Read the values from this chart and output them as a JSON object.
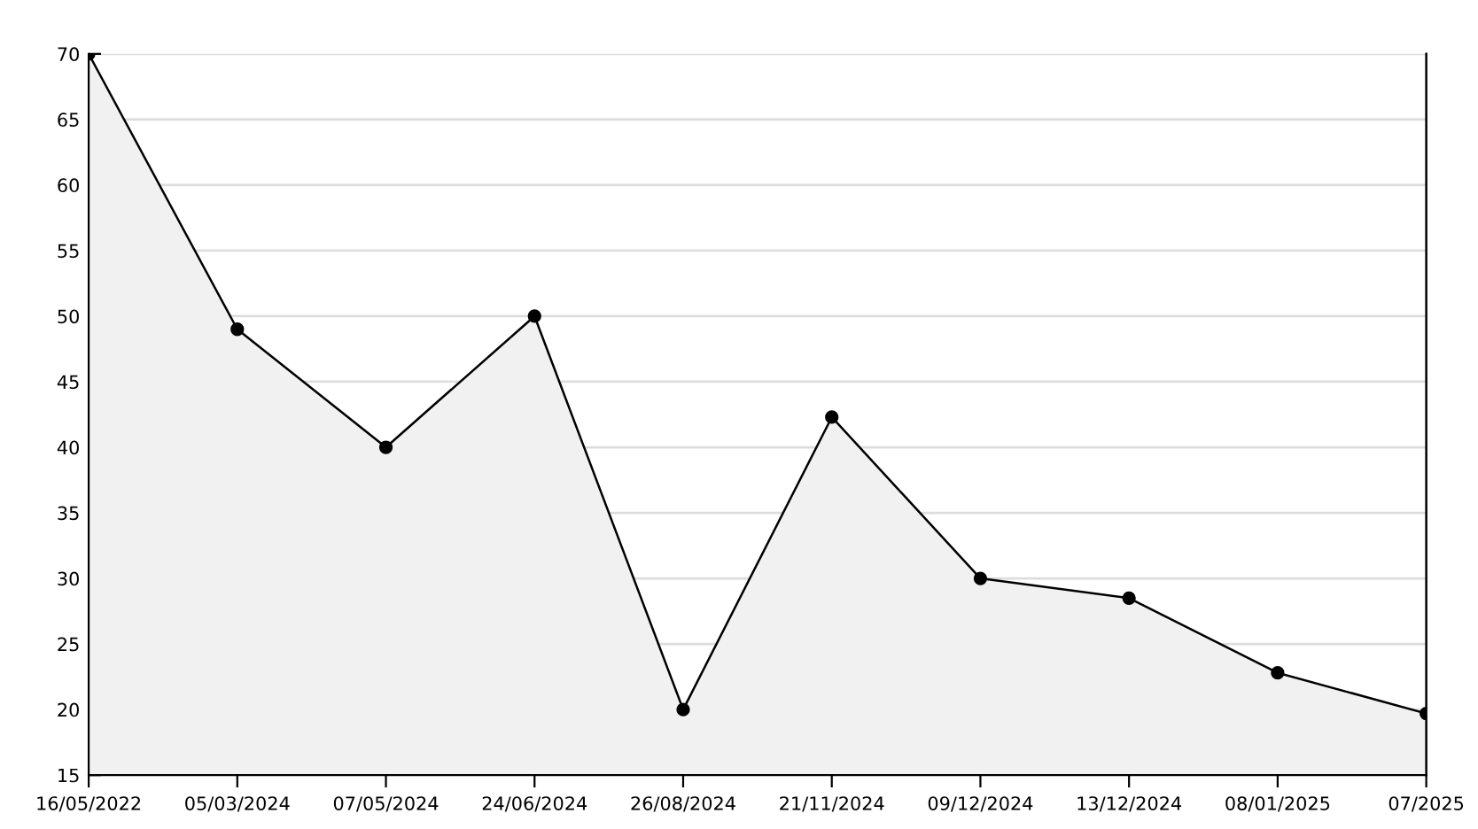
{
  "chart_data": {
    "type": "area",
    "categories": [
      "16/05/2022",
      "05/03/2024",
      "07/05/2024",
      "24/06/2024",
      "26/08/2024",
      "21/11/2024",
      "09/12/2024",
      "13/12/2024",
      "08/01/2025",
      "07/2025"
    ],
    "series": [
      {
        "color": "#000000",
        "values": [
          70,
          49,
          40,
          50,
          20,
          42.3,
          30,
          28.5,
          22.8,
          19.7
        ]
      }
    ],
    "ylim": [
      15,
      70
    ],
    "yticks": [
      15,
      20,
      25,
      30,
      35,
      40,
      45,
      50,
      55,
      60,
      65,
      70
    ],
    "grid": "y",
    "marker": "circle",
    "line_style": "solid"
  }
}
